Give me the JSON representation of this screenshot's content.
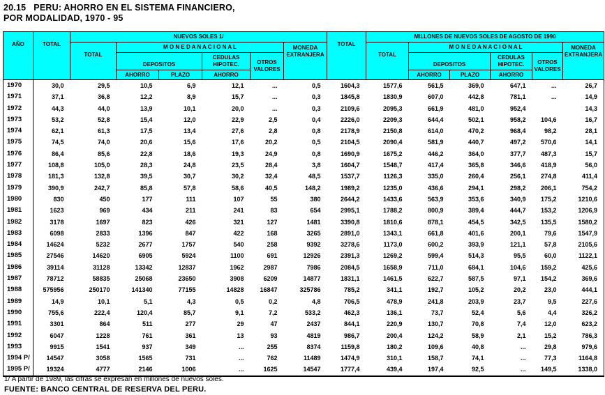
{
  "title": {
    "line1": "20.15   PERU: AHORRO EN EL SISTEMA FINANCIERO,",
    "line2": "POR MODALIDAD, 1970 - 95"
  },
  "colors": {
    "header_bg": "#00ffff",
    "border": "#000000",
    "text": "#000000",
    "page_bg": "#ffffff"
  },
  "table": {
    "header": {
      "col_ano": "AÑO",
      "col_total": "TOTAL",
      "group_nuevos_soles": "NUEVOS SOLES  1/",
      "group_millones": "MILLONES DE NUEVOS SOLES DE AGOSTO DE 1990",
      "sub_total": "TOTAL",
      "moneda_nacional": "M O N E D A    N A C I O N A L",
      "moneda_ext_line1": "MONEDA",
      "moneda_ext_line2": "EXTRANJERA",
      "depositos": "DEPOSITOS",
      "cedulas_line1": "CEDULAS",
      "cedulas_line2": "HIPOTEC.",
      "otros_line1": "OTROS",
      "otros_line2": "VALORES",
      "ahorro": "AHORRO",
      "plazo": "PLAZO"
    },
    "rows": [
      {
        "year": "1970",
        "values": [
          "30,0",
          "29,5",
          "10,5",
          "6,9",
          "12,1",
          "...",
          "0,5",
          "1604,3",
          "1577,6",
          "561,5",
          "369,0",
          "647,1",
          "...",
          "26,7"
        ]
      },
      {
        "year": "1971",
        "values": [
          "37,1",
          "36,8",
          "12,2",
          "8,9",
          "15,7",
          "...",
          "0,3",
          "1845,8",
          "1830,9",
          "607,0",
          "442,8",
          "781,1",
          "...",
          "14,9"
        ]
      },
      {
        "year": "1972",
        "values": [
          "44,3",
          "44,0",
          "13,9",
          "10,1",
          "20,0",
          "...",
          "0,3",
          "2109,6",
          "2095,3",
          "661,9",
          "481,0",
          "952,4",
          "",
          "14,3"
        ]
      },
      {
        "year": "1973",
        "values": [
          "53,2",
          "52,8",
          "15,4",
          "12,0",
          "22,9",
          "2,5",
          "0,4",
          "2226,0",
          "2209,3",
          "644,4",
          "502,1",
          "958,2",
          "104,6",
          "16,7"
        ]
      },
      {
        "year": "1974",
        "values": [
          "62,1",
          "61,3",
          "17,5",
          "13,4",
          "27,6",
          "2,8",
          "0,8",
          "2178,9",
          "2150,8",
          "614,0",
          "470,2",
          "968,4",
          "98,2",
          "28,1"
        ]
      },
      {
        "year": "1975",
        "values": [
          "74,5",
          "74,0",
          "20,6",
          "15,6",
          "17,6",
          "20,2",
          "0,5",
          "2104,5",
          "2090,4",
          "581,9",
          "440,7",
          "497,2",
          "570,6",
          "14,1"
        ]
      },
      {
        "year": "1976",
        "values": [
          "86,4",
          "85,6",
          "22,8",
          "18,6",
          "19,3",
          "24,9",
          "0,8",
          "1690,9",
          "1675,2",
          "446,2",
          "364,0",
          "377,7",
          "487,3",
          "15,7"
        ]
      },
      {
        "year": "1977",
        "values": [
          "108,8",
          "105,0",
          "28,3",
          "24,8",
          "23,5",
          "28,4",
          "3,8",
          "1604,7",
          "1548,7",
          "417,4",
          "365,8",
          "346,6",
          "418,9",
          "56,0"
        ]
      },
      {
        "year": "1978",
        "values": [
          "181,3",
          "132,8",
          "39,5",
          "30,7",
          "30,2",
          "32,4",
          "48,5",
          "1537,7",
          "1126,3",
          "335,0",
          "260,4",
          "256,1",
          "274,8",
          "411,4"
        ]
      },
      {
        "year": "1979",
        "values": [
          "390,9",
          "242,7",
          "85,8",
          "57,8",
          "58,6",
          "40,5",
          "148,2",
          "1989,2",
          "1235,0",
          "436,6",
          "294,1",
          "298,2",
          "206,1",
          "754,2"
        ]
      },
      {
        "year": "1980",
        "values": [
          "830",
          "450",
          "177",
          "111",
          "107",
          "55",
          "380",
          "2644,2",
          "1433,6",
          "563,9",
          "353,6",
          "340,9",
          "175,2",
          "1210,6"
        ]
      },
      {
        "year": "1981",
        "values": [
          "1623",
          "969",
          "434",
          "211",
          "241",
          "83",
          "654",
          "2995,1",
          "1788,2",
          "800,9",
          "389,4",
          "444,7",
          "153,2",
          "1206,9"
        ]
      },
      {
        "year": "1982",
        "values": [
          "3178",
          "1697",
          "823",
          "426",
          "321",
          "127",
          "1481",
          "3390,8",
          "1810,6",
          "878,1",
          "454,5",
          "342,5",
          "135,5",
          "1580,2"
        ]
      },
      {
        "year": "1983",
        "values": [
          "6098",
          "2833",
          "1396",
          "847",
          "422",
          "168",
          "3265",
          "2891,0",
          "1343,1",
          "661,8",
          "401,6",
          "200,1",
          "79,6",
          "1547,9"
        ]
      },
      {
        "year": "1984",
        "values": [
          "14624",
          "5232",
          "2677",
          "1757",
          "540",
          "258",
          "9392",
          "3278,6",
          "1173,0",
          "600,2",
          "393,9",
          "121,1",
          "57,8",
          "2105,6"
        ]
      },
      {
        "year": "1985",
        "values": [
          "27546",
          "14620",
          "6905",
          "5924",
          "1100",
          "691",
          "12926",
          "2391,3",
          "1269,2",
          "599,4",
          "514,3",
          "95,5",
          "60,0",
          "1122,1"
        ]
      },
      {
        "year": "1986",
        "values": [
          "39114",
          "31128",
          "13342",
          "12837",
          "1962",
          "2987",
          "7986",
          "2084,5",
          "1658,9",
          "711,0",
          "684,1",
          "104,6",
          "159,2",
          "425,6"
        ]
      },
      {
        "year": "1987",
        "values": [
          "78712",
          "58835",
          "25068",
          "23650",
          "3908",
          "6209",
          "14877",
          "1831,1",
          "1461,5",
          "622,7",
          "587,5",
          "97,1",
          "154,2",
          "369,6"
        ]
      },
      {
        "year": "1988",
        "values": [
          "575956",
          "250170",
          "141340",
          "77155",
          "14828",
          "16847",
          "325786",
          "785,2",
          "341,1",
          "192,7",
          "105,2",
          "20,2",
          "23,0",
          "444,1"
        ]
      },
      {
        "year": "1989",
        "values": [
          "14,9",
          "10,1",
          "5,1",
          "4,3",
          "0,5",
          "0,2",
          "4,8",
          "706,5",
          "478,9",
          "241,8",
          "203,9",
          "23,7",
          "9,5",
          "227,6"
        ]
      },
      {
        "year": "1990",
        "values": [
          "755,6",
          "222,4",
          "120,4",
          "85,7",
          "9,1",
          "7,2",
          "533,2",
          "462,3",
          "136,1",
          "73,7",
          "52,4",
          "5,6",
          "4,4",
          "326,2"
        ]
      },
      {
        "year": "1991",
        "values": [
          "3301",
          "864",
          "511",
          "277",
          "29",
          "47",
          "2437",
          "844,1",
          "220,9",
          "130,7",
          "70,8",
          "7,4",
          "12,0",
          "623,2"
        ]
      },
      {
        "year": "1992",
        "values": [
          "6047",
          "1228",
          "761",
          "361",
          "13",
          "93",
          "4819",
          "986,7",
          "200,4",
          "124,2",
          "58,9",
          "2,1",
          "15,2",
          "786,3"
        ]
      },
      {
        "year": "1993",
        "values": [
          "9915",
          "1541",
          "937",
          "349",
          "...",
          "255",
          "8374",
          "1159,8",
          "180,2",
          "109,6",
          "40,8",
          "...",
          "29,8",
          "979,6"
        ]
      },
      {
        "year": "1994 P/",
        "values": [
          "14547",
          "3058",
          "1565",
          "731",
          "...",
          "762",
          "11489",
          "1474,9",
          "310,1",
          "158,7",
          "74,1",
          "...",
          "77,3",
          "1164,8"
        ]
      },
      {
        "year": "1995 P/",
        "values": [
          "19324",
          "4777",
          "2146",
          "1006",
          "...",
          "1625",
          "14547",
          "1777,4",
          "439,4",
          "197,4",
          "92,5",
          "...",
          "149,5",
          "1338,0"
        ]
      }
    ]
  },
  "footnote": "1/ A partir de 1989, las cifras se expresan en millones de nuevos soles.",
  "source": "FUENTE: BANCO CENTRAL DE RESERVA DEL PERU."
}
